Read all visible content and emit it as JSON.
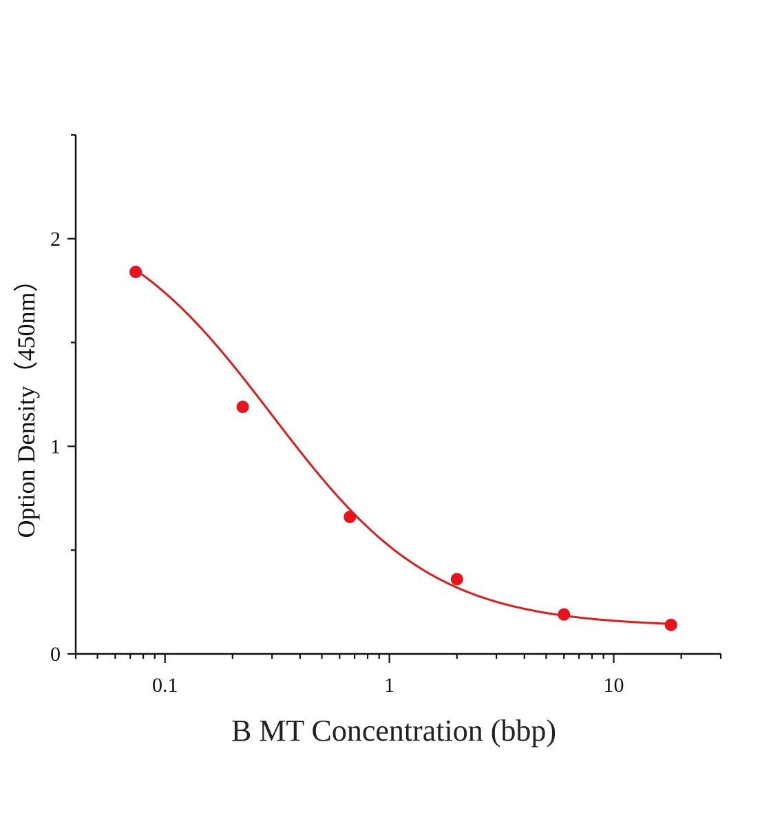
{
  "chart_data": {
    "type": "scatter",
    "title": "",
    "xlabel": "B MT Concentration (bbp)",
    "ylabel": "Option Density（450nm）",
    "x_scale": "log",
    "xlim": [
      0.04,
      30
    ],
    "ylim": [
      0,
      2.5
    ],
    "x_ticks": [
      {
        "value": 0.1,
        "label": "0.1"
      },
      {
        "value": 1,
        "label": "1"
      },
      {
        "value": 10,
        "label": "10"
      }
    ],
    "y_ticks": [
      {
        "value": 0,
        "label": "0"
      },
      {
        "value": 1,
        "label": "1"
      },
      {
        "value": 2,
        "label": "2"
      }
    ],
    "y_minor_ticks": [
      0.5,
      1.5,
      2.5
    ],
    "grid": false,
    "legend": "none",
    "series": [
      {
        "marker_color": "#e8141b",
        "points": [
          {
            "x": 0.074,
            "y": 1.84
          },
          {
            "x": 0.222,
            "y": 1.19
          },
          {
            "x": 0.667,
            "y": 0.66
          },
          {
            "x": 2.0,
            "y": 0.36
          },
          {
            "x": 6.0,
            "y": 0.19
          },
          {
            "x": 18.0,
            "y": 0.14
          }
        ],
        "fit": {
          "model": "4PL",
          "line_color": "#e01b1b",
          "top": 2.17,
          "bottom": 0.13,
          "ec50": 0.3,
          "hill": 1.2,
          "x_range": [
            0.074,
            18
          ]
        }
      }
    ]
  }
}
